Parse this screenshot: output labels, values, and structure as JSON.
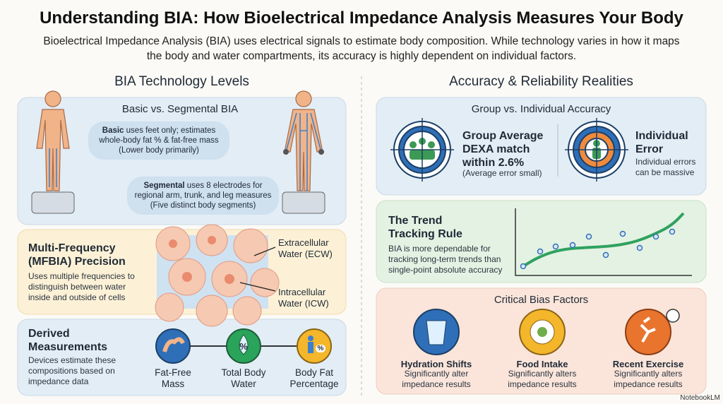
{
  "header": {
    "title": "Understanding BIA: How Bioelectrical Impedance Analysis Measures Your Body",
    "subtitle": "Bioelectrical Impedance Analysis (BIA) uses electrical signals to estimate body composition. While technology varies in how it maps the body and water compartments, its accuracy is highly dependent on individual factors."
  },
  "left": {
    "heading": "BIA Technology Levels",
    "levels": {
      "title": "Basic vs. Segmental BIA",
      "basic": {
        "lead": "Basic",
        "text": " uses feet only; estimates whole-body fat % & fat-free mass",
        "note": "(Lower body primarily)"
      },
      "segmental": {
        "lead": "Segmental",
        "text": " uses 8 electrodes for regional arm, trunk, and leg measures",
        "note": "(Five distinct body segments)"
      }
    },
    "mfbia": {
      "title": "Multi-Frequency (MFBIA) Precision",
      "text": "Uses multiple frequencies to distinguish between water inside and outside of cells",
      "ecw": "Extracellular Water (ECW)",
      "icw": "Intracellular Water (ICW)"
    },
    "derived": {
      "title": "Derived Measurements",
      "text": "Devices estimate these compositions based on impedance data",
      "items": [
        {
          "label": "Fat-Free Mass"
        },
        {
          "label": "Total Body Water",
          "symbol": "%"
        },
        {
          "label": "Body Fat Percentage",
          "symbol": "%"
        }
      ]
    }
  },
  "right": {
    "heading": "Accuracy & Reliability Realities",
    "accuracy": {
      "title": "Group vs. Individual Accuracy",
      "group": {
        "title": "Group Average DEXA match within 2.6%",
        "note": "(Average error small)"
      },
      "individual": {
        "title": "Individual Error",
        "note": "Individual errors can be massive"
      }
    },
    "trend": {
      "title": "The Trend Tracking Rule",
      "text": "BIA is more dependable for tracking long-term trends than single-point absolute accuracy"
    },
    "bias": {
      "title": "Critical Bias Factors",
      "items": [
        {
          "title": "Hydration Shifts",
          "text": "Significantly alter impedance results"
        },
        {
          "title": "Food Intake",
          "text": "Significantly alters impedance results"
        },
        {
          "title": "Recent Exercise",
          "text": "Significantly alters impedance results"
        }
      ]
    }
  },
  "footer": {
    "brand": "NotebookLM"
  }
}
